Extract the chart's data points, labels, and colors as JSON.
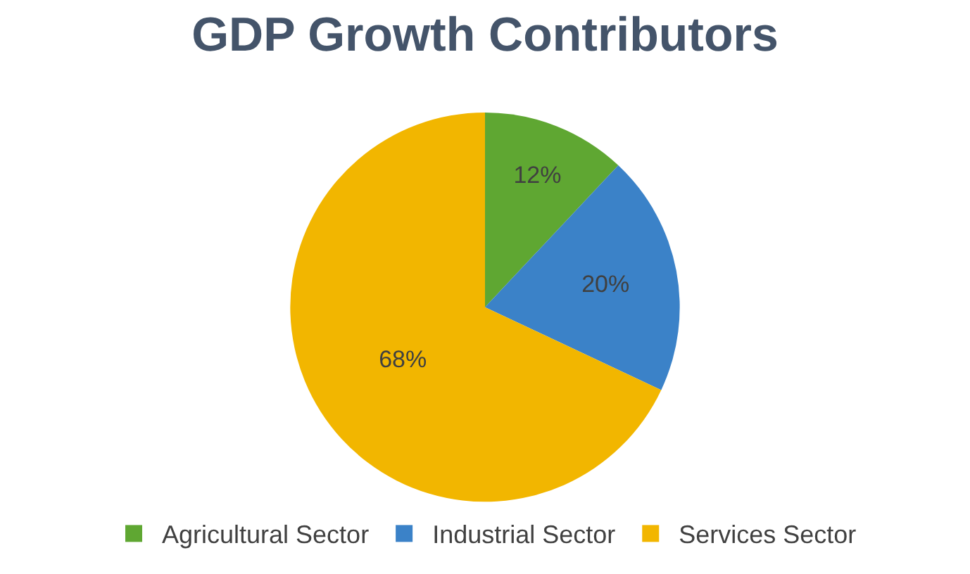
{
  "chart_data": {
    "type": "pie",
    "title": "GDP Growth Contributors",
    "categories": [
      "Agricultural Sector",
      "Industrial Sector",
      "Services Sector"
    ],
    "values": [
      12,
      20,
      68
    ],
    "colors": [
      "#5fa732",
      "#3b82c8",
      "#f2b600"
    ],
    "value_labels": [
      "12%",
      "20%",
      "68%"
    ],
    "legend": "bottom"
  }
}
